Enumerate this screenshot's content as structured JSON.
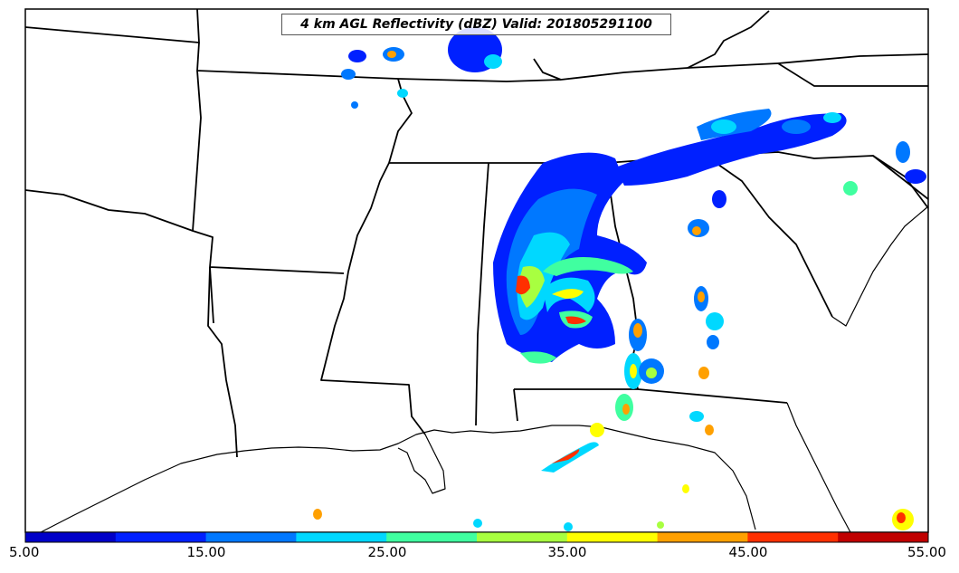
{
  "title": "4 km AGL Reflectivity (dBZ) Valid: 201805291100",
  "colorbar": {
    "ticks": [
      "5.00",
      "15.00",
      "25.00",
      "35.00",
      "45.00",
      "55.00"
    ],
    "colors": [
      "#0000c8",
      "#0020ff",
      "#0078ff",
      "#00d8ff",
      "#40ffa0",
      "#a8ff40",
      "#ffff00",
      "#ffa000",
      "#ff3000",
      "#c00000"
    ]
  },
  "colors": {
    "state_lines": "#000000",
    "background": "#ffffff"
  }
}
